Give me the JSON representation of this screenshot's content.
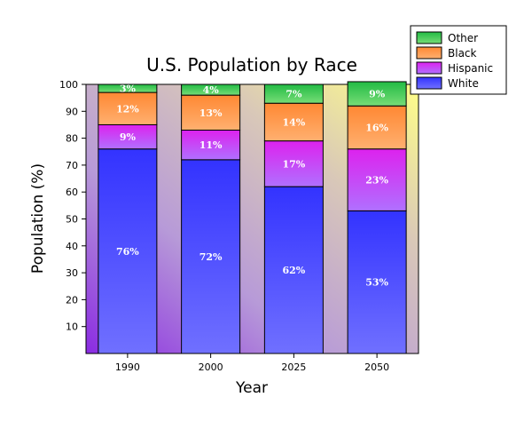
{
  "chart_data": {
    "type": "bar",
    "stacked": true,
    "title": "U.S. Population by Race",
    "xlabel": "Year",
    "ylabel": "Population (%)",
    "ylim": [
      0,
      100
    ],
    "yticks": [
      10,
      20,
      30,
      40,
      50,
      60,
      70,
      80,
      90,
      100
    ],
    "categories": [
      "1990",
      "2000",
      "2025",
      "2050"
    ],
    "series": [
      {
        "name": "White",
        "values": [
          76,
          72,
          62,
          53
        ],
        "labels": [
          "76%",
          "72%",
          "62%",
          "53%"
        ],
        "color": "#3333ff",
        "color_light": "#7070ff"
      },
      {
        "name": "Hispanic",
        "values": [
          9,
          11,
          17,
          23
        ],
        "labels": [
          "9%",
          "11%",
          "17%",
          "23%"
        ],
        "color": "#dd22ee",
        "color_light": "#b070ff"
      },
      {
        "name": "Black",
        "values": [
          12,
          13,
          14,
          16
        ],
        "labels": [
          "12%",
          "13%",
          "14%",
          "16%"
        ],
        "color": "#ff8833",
        "color_light": "#ffb070"
      },
      {
        "name": "Other",
        "values": [
          3,
          4,
          7,
          9
        ],
        "labels": [
          "3%",
          "4%",
          "7%",
          "9%"
        ],
        "color": "#22bb44",
        "color_light": "#77dd77"
      }
    ],
    "legend_position": "top-right",
    "grid": false
  }
}
